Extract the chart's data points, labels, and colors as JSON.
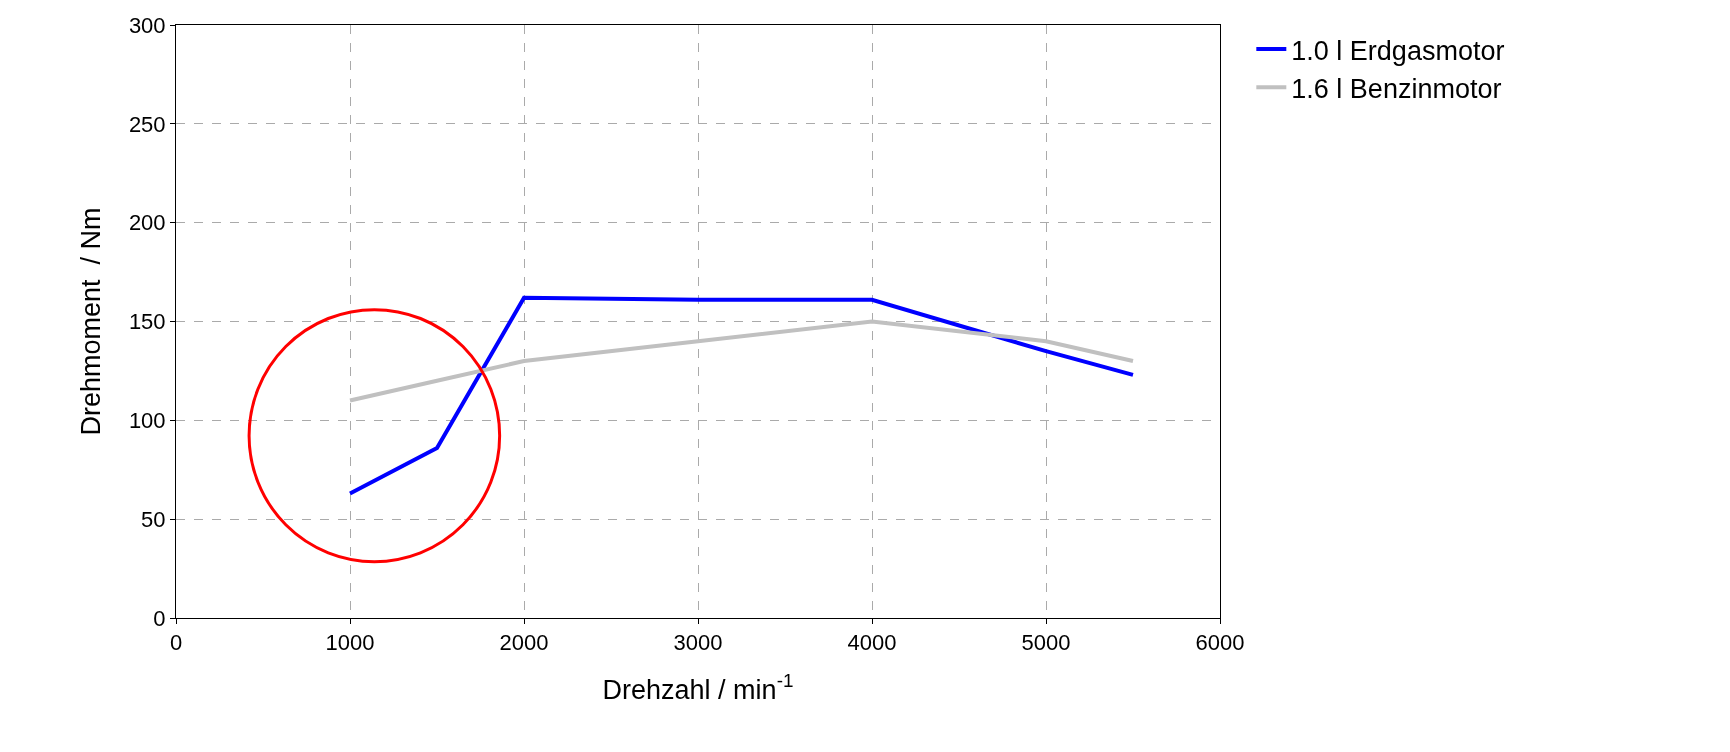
{
  "chart_data": {
    "type": "line",
    "xlabel": "Drehzahl / min$^{-1}$",
    "ylabel": "Drehmoment  / Nm",
    "x": [
      1000,
      1500,
      2000,
      3000,
      4000,
      5000,
      5500
    ],
    "series": [
      {
        "name": "1.0 l Erdgasmotor",
        "color": "#0000ff",
        "values": [
          63,
          86,
          162,
          161,
          161,
          135,
          123
        ]
      },
      {
        "name": "1.6 l Benzinmotor",
        "color": "#c0c0c0",
        "values": [
          110,
          120,
          130,
          140,
          150,
          140,
          130
        ]
      }
    ],
    "xlim": [
      0,
      6000
    ],
    "xticks": [
      0,
      1000,
      2000,
      3000,
      4000,
      5000,
      6000
    ],
    "ylim": [
      0,
      300
    ],
    "yticks": [
      0,
      50,
      100,
      150,
      200,
      250,
      300
    ],
    "grid": true,
    "legend": "top right",
    "marker": "none",
    "line_style": "solid"
  }
}
